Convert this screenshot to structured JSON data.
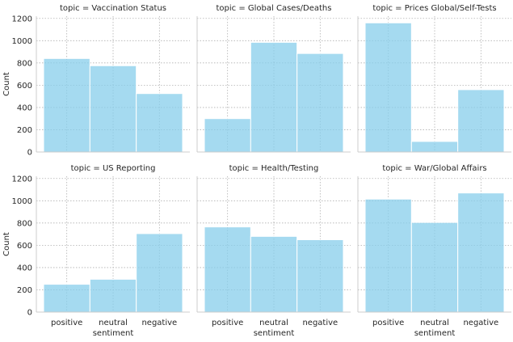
{
  "chart_data": {
    "type": "bar",
    "facet_by": "topic",
    "categories": [
      "positive",
      "neutral",
      "negative"
    ],
    "xlabel": "sentiment",
    "ylabel": "Count",
    "ylim": [
      0,
      1220
    ],
    "yticks": [
      0,
      200,
      400,
      600,
      800,
      1000,
      1200
    ],
    "grid": true,
    "bar_color": "#87ceeb",
    "panels": [
      {
        "title": "topic = Vaccination Status",
        "values": [
          840,
          775,
          525
        ]
      },
      {
        "title": "topic = Global Cases/Deaths",
        "values": [
          300,
          985,
          885
        ]
      },
      {
        "title": "topic = Prices Global/Self-Tests",
        "values": [
          1160,
          95,
          560
        ]
      },
      {
        "title": "topic = US Reporting",
        "values": [
          250,
          295,
          705
        ]
      },
      {
        "title": "topic = Health/Testing",
        "values": [
          765,
          680,
          650
        ]
      },
      {
        "title": "topic = War/Global Affairs",
        "values": [
          1015,
          805,
          1070
        ]
      }
    ]
  }
}
